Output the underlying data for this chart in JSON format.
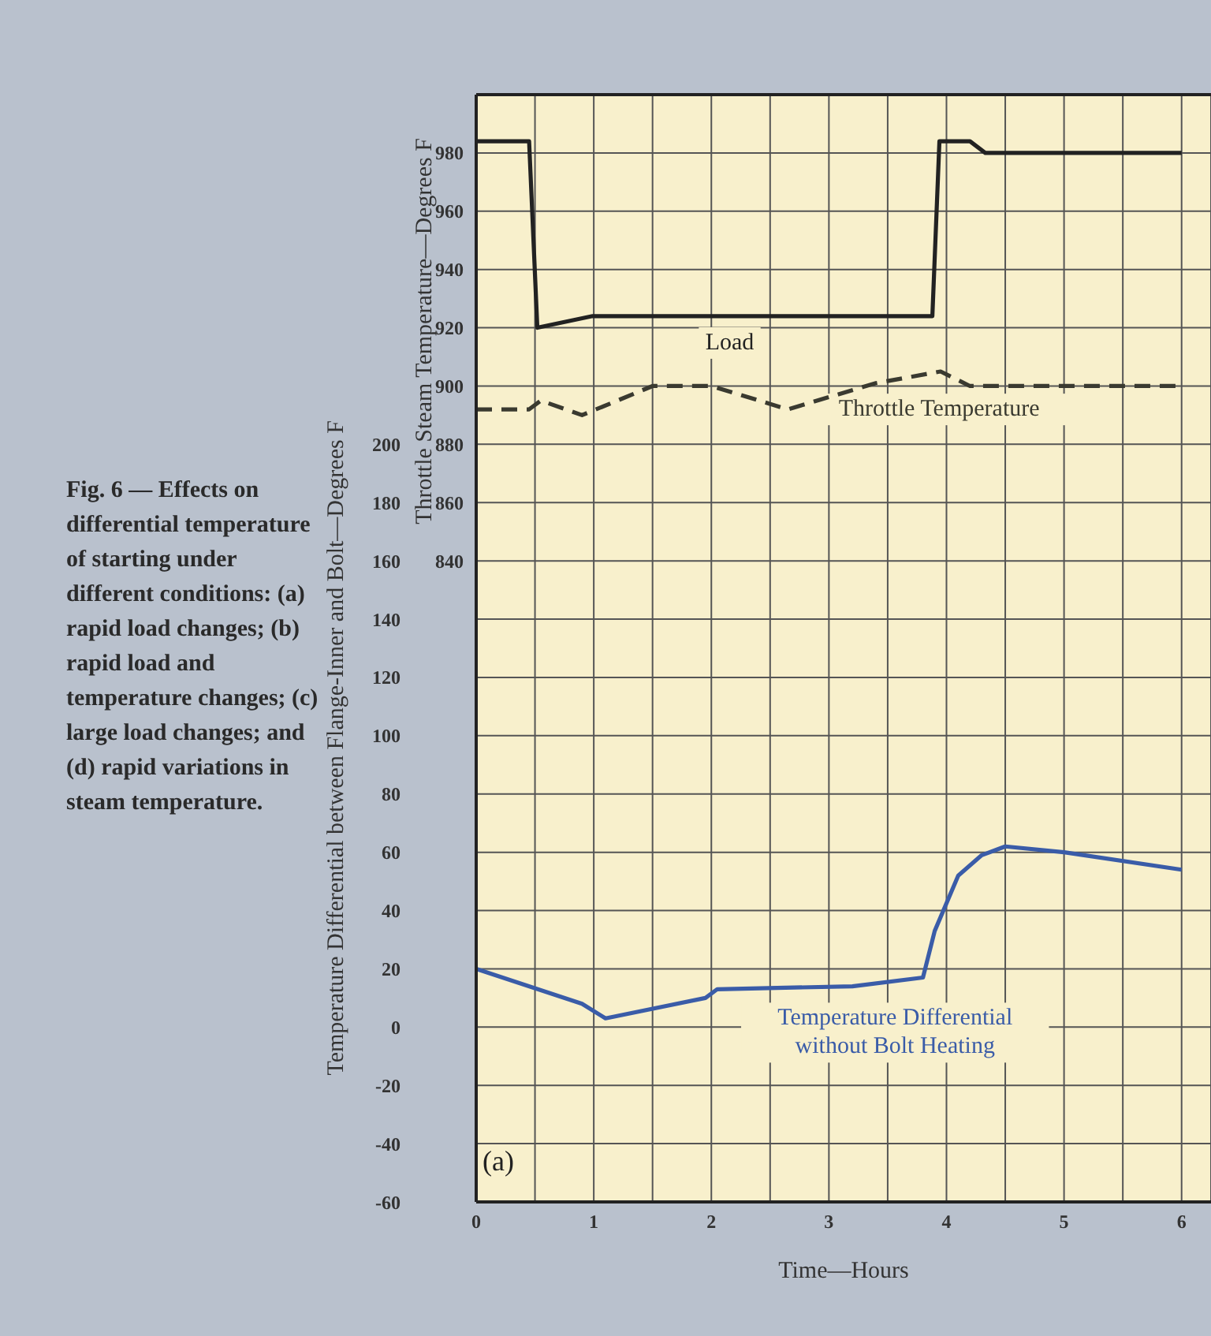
{
  "chart_data": {
    "type": "line",
    "annotations": [
      "Fig. 6 — Effects on differential temperature of starting under different conditions: (a) rapid load changes; (b) rapid load and temperature changes; (c) large load changes; and (d) rapid variations in steam temperature.",
      "(a)"
    ],
    "xlabel": "Time—Hours",
    "ylabel": "Temperature Differential between Flange-Inner and Bolt—Degrees F",
    "y2label": "Throttle Steam Temperature—Degrees F",
    "xlim": [
      0,
      6.25
    ],
    "xticks": [
      0,
      {
        "value": 0.5,
        "label": null
      },
      1,
      {
        "value": 1.5,
        "label": null
      },
      2,
      {
        "value": 2.5,
        "label": null
      },
      3,
      {
        "value": 3.5,
        "label": null
      },
      4,
      {
        "value": 4.5,
        "label": null
      },
      5,
      {
        "value": 5.5,
        "label": null
      },
      6
    ],
    "ylim": [
      -60,
      320
    ],
    "yticks": [
      -60,
      -40,
      -20,
      0,
      20,
      40,
      60,
      80,
      100,
      120,
      140,
      160,
      180,
      200,
      {
        "value": 220,
        "label": null
      },
      {
        "value": 240,
        "label": null
      },
      {
        "value": 260,
        "label": null
      },
      {
        "value": 280,
        "label": null
      },
      {
        "value": 300,
        "label": null
      },
      {
        "value": 320,
        "label": null
      }
    ],
    "y2lim": [
      620,
      1000
    ],
    "y2ticks": [
      840,
      860,
      880,
      900,
      920,
      940,
      960,
      980
    ],
    "grid": true,
    "marker": "none",
    "series": [
      {
        "name": "Load",
        "color": "#222222",
        "axis": "y2",
        "line_style": "solid",
        "x": [
          0,
          0.45,
          0.52,
          0.99,
          3.88,
          3.94,
          4.2,
          4.33,
          6
        ],
        "values": [
          984,
          984,
          920,
          924,
          924,
          984,
          984,
          980,
          980
        ]
      },
      {
        "name": "Throttle Temperature",
        "color": "#3a3a30",
        "axis": "y2",
        "line_style": "dashed",
        "x": [
          0,
          0.45,
          0.55,
          0.9,
          1.5,
          2.0,
          2.65,
          3.4,
          3.95,
          4.2,
          6
        ],
        "values": [
          892,
          892,
          895,
          890,
          900,
          900,
          892,
          901,
          905,
          900,
          900
        ]
      },
      {
        "name": "Temperature Differential without Bolt Heating",
        "color": "#3a5ca8",
        "axis": "y",
        "line_style": "solid",
        "x": [
          0,
          0.9,
          1.1,
          1.95,
          2.05,
          3.2,
          3.8,
          3.9,
          4.1,
          4.3,
          4.5,
          5.0,
          6
        ],
        "values": [
          20,
          8,
          3,
          10,
          13,
          14,
          17,
          33,
          52,
          59,
          62,
          60,
          54
        ]
      }
    ]
  }
}
